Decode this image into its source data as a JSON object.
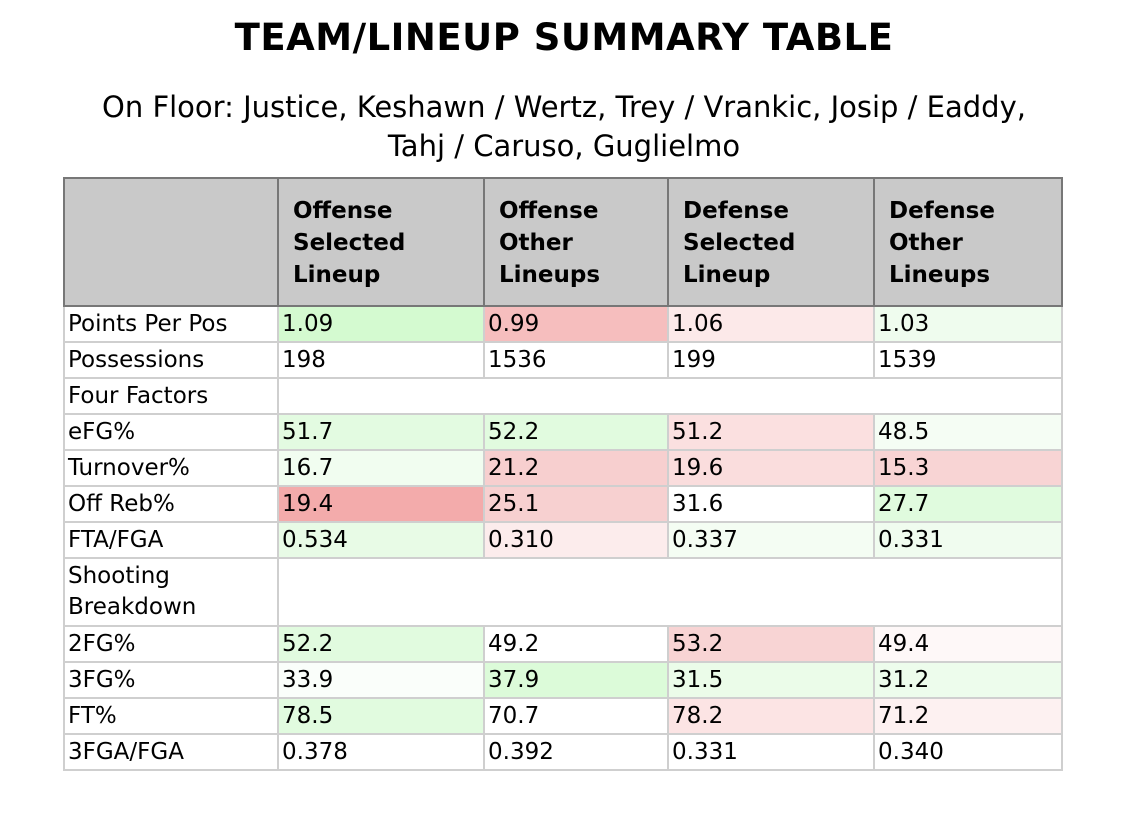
{
  "title": "TEAM/LINEUP SUMMARY TABLE",
  "subtitle_line1": "On Floor: Justice, Keshawn / Wertz, Trey / Vrankic, Josip / Eaddy,",
  "subtitle_line2": "Tahj / Caruso, Guglielmo",
  "columns": {
    "c0": "",
    "c1": "Offense Selected Lineup",
    "c2": "Offense Other Lineups",
    "c3": "Defense Selected Lineup",
    "c4": "Defense Other Lineups"
  },
  "rows": {
    "ppp": {
      "label": "Points Per Pos",
      "v": [
        "1.09",
        "0.99",
        "1.06",
        "1.03"
      ],
      "bg": [
        "#d4fad0",
        "#f6bebe",
        "#fce9e9",
        "#effcee"
      ]
    },
    "poss": {
      "label": "Possessions",
      "v": [
        "198",
        "1536",
        "199",
        "1539"
      ],
      "bg": [
        "#ffffff",
        "#ffffff",
        "#ffffff",
        "#ffffff"
      ]
    },
    "ff": {
      "label": "Four Factors"
    },
    "efg": {
      "label": "eFG%",
      "v": [
        "51.7",
        "52.2",
        "51.2",
        "48.5"
      ],
      "bg": [
        "#e3fbe1",
        "#e1fbdf",
        "#fbe0e0",
        "#f5fdf4"
      ]
    },
    "tov": {
      "label": "Turnover%",
      "v": [
        "16.7",
        "21.2",
        "19.6",
        "15.3"
      ],
      "bg": [
        "#f1fdf0",
        "#f7cfcf",
        "#fadddd",
        "#f8d4d4"
      ]
    },
    "orb": {
      "label": "Off Reb%",
      "v": [
        "19.4",
        "25.1",
        "31.6",
        "27.7"
      ],
      "bg": [
        "#f3abab",
        "#f7d0d0",
        "#ffffff",
        "#e0fbde"
      ]
    },
    "ftr": {
      "label": "FTA/FGA",
      "v": [
        "0.534",
        "0.310",
        "0.337",
        "0.331"
      ],
      "bg": [
        "#e8fbe6",
        "#fcecec",
        "#f4fdf3",
        "#f0fcef"
      ]
    },
    "sb": {
      "label": "Shooting Breakdown"
    },
    "fg2": {
      "label": "2FG%",
      "v": [
        "52.2",
        "49.2",
        "53.2",
        "49.4"
      ],
      "bg": [
        "#e1fbdf",
        "#ffffff",
        "#f8d4d4",
        "#fef8f8"
      ]
    },
    "fg3": {
      "label": "3FG%",
      "v": [
        "33.9",
        "37.9",
        "31.5",
        "31.2"
      ],
      "bg": [
        "#fafefa",
        "#dcfbd9",
        "#ebfce9",
        "#edfcec"
      ]
    },
    "ft": {
      "label": "FT%",
      "v": [
        "78.5",
        "70.7",
        "78.2",
        "71.2"
      ],
      "bg": [
        "#e1fbdf",
        "#ffffff",
        "#fce4e4",
        "#fdf1f1"
      ]
    },
    "fga3r": {
      "label": "3FGA/FGA",
      "v": [
        "0.378",
        "0.392",
        "0.331",
        "0.340"
      ],
      "bg": [
        "#ffffff",
        "#ffffff",
        "#ffffff",
        "#ffffff"
      ]
    }
  }
}
